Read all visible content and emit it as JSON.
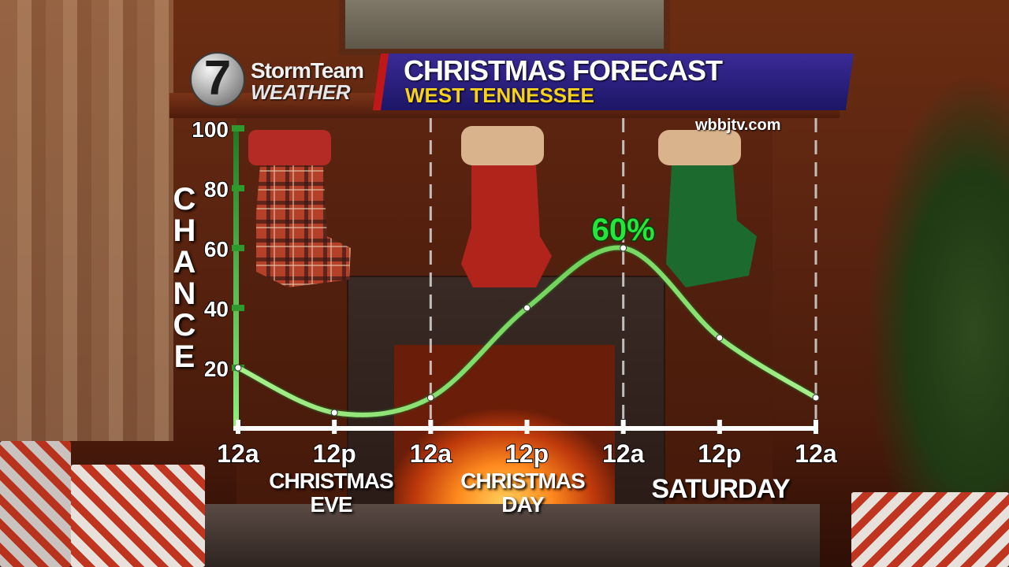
{
  "header": {
    "logo_number": "7",
    "logo_line1": "StormTeam",
    "logo_line2": "WEATHER",
    "title": "CHRISTMAS FORECAST",
    "subtitle": "WEST TENNESSEE",
    "website": "wbbjtv.com"
  },
  "day_labels": [
    "CHRISTMAS\nEVE",
    "CHRISTMAS\nDAY",
    "SATURDAY"
  ],
  "colors": {
    "line": "#7ee06a",
    "axis": "#2e9a2e",
    "title_band": "#2a2080",
    "subtitle_text": "#f7d21a",
    "annotation": "#27e63a"
  },
  "chart_data": {
    "type": "line",
    "title": "",
    "ylabel": "CHANCE",
    "xlabel": "",
    "x_tick_labels": [
      "12a",
      "12p",
      "12a",
      "12p",
      "12a",
      "12p",
      "12a"
    ],
    "y_ticks": [
      "20",
      "40",
      "60",
      "80",
      "100"
    ],
    "ylim": [
      0,
      100
    ],
    "grid": "vertical dashed lines at each 12a",
    "series": [
      {
        "values": [
          20,
          5,
          10,
          40,
          60,
          30,
          10
        ]
      }
    ],
    "annotations": [
      {
        "text": "60%",
        "point_index": 4
      }
    ]
  }
}
